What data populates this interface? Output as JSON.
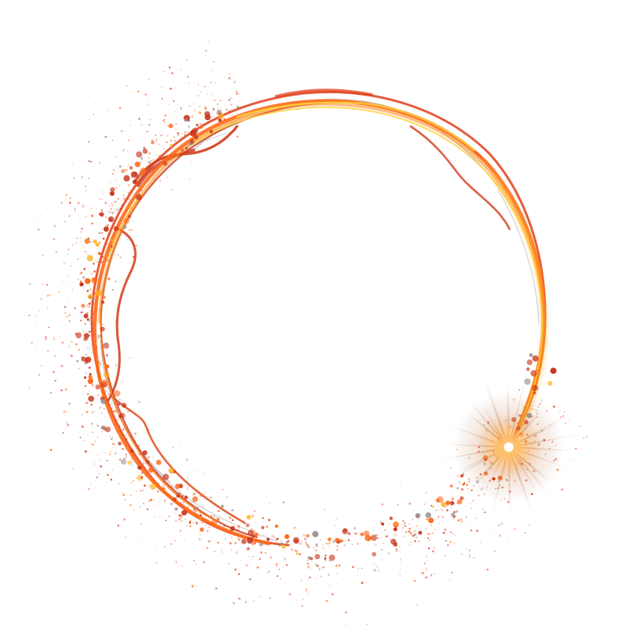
{
  "scene": {
    "subject": "fire-ring-spark",
    "background_color": "#ffffff",
    "colors": {
      "core": "#ffd23a",
      "bright": "#ffae1a",
      "main": "#ff6a1a",
      "deep": "#e0401a",
      "ember": "#c8341a",
      "smoke": "#9a8f8f",
      "spark_core": "#ffffff",
      "spark_glow": "#ff9a3a"
    }
  }
}
